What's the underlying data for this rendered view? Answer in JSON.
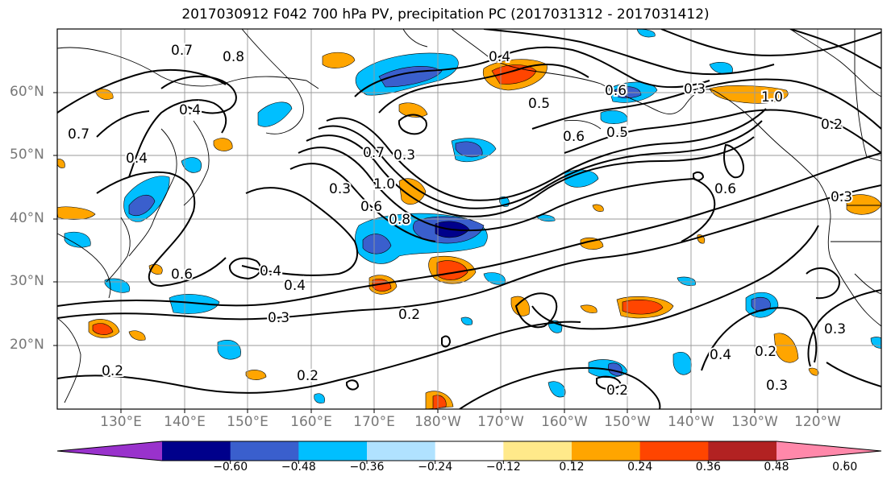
{
  "title": "2017030912 F042 700 hPa PV, precipitation PC (2017031312 - 2017031412)",
  "lat_labels": [
    "60°N",
    "50°N",
    "40°N",
    "30°N",
    "20°N"
  ],
  "lon_labels": [
    "130°E",
    "140°E",
    "150°E",
    "160°E",
    "170°E",
    "180°W",
    "170°W",
    "160°W",
    "150°W",
    "140°W",
    "130°W",
    "120°W"
  ],
  "contour_labels": [
    "0.4",
    "0.6",
    "0.4",
    "0.4",
    "0.3",
    "0.2",
    "0.2",
    "0.3",
    "0.2",
    "0.3",
    "0.2",
    "0.4",
    "0.5",
    "0.6",
    "0.5",
    "0.6",
    "0.3",
    "0.7",
    "1.0",
    "0.6",
    "0.8",
    "0.6",
    "0.3",
    "0.2",
    "1.0",
    "0.8",
    "0.7",
    "0.4",
    "0.4",
    "0.7",
    "0.3",
    "0.3",
    "0.2"
  ],
  "colorbar": {
    "ticks": [
      "−0.60",
      "−0.48",
      "−0.36",
      "−0.24",
      "−0.12",
      "0.12",
      "0.24",
      "0.36",
      "0.48",
      "0.60"
    ],
    "colors": [
      "#9932cc",
      "#00008b",
      "#3a5fcd",
      "#00bfff",
      "#b0e2ff",
      "#ffffff",
      "#ffe98a",
      "#ffa500",
      "#ff4500",
      "#b22222",
      "#ff88aa"
    ]
  }
}
